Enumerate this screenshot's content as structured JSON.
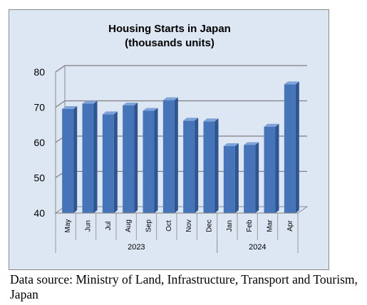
{
  "chart_data": {
    "type": "bar",
    "title": "Housing Starts in Japan",
    "subtitle": "(thousands units)",
    "categories": [
      "May",
      "Jun",
      "Jul",
      "Aug",
      "Sep",
      "Oct",
      "Nov",
      "Dec",
      "Jan",
      "Feb",
      "Mar",
      "Apr"
    ],
    "year_groups": [
      {
        "label": "2023",
        "count": 8
      },
      {
        "label": "2024",
        "count": 4
      }
    ],
    "values": [
      69.5,
      71.0,
      68.0,
      70.5,
      69.0,
      72.0,
      66.2,
      66.0,
      59.0,
      59.3,
      64.5,
      76.5
    ],
    "ylim": [
      40,
      80
    ],
    "yticks": [
      "40",
      "50",
      "60",
      "70",
      "80"
    ],
    "grid": true,
    "bar_color": "#4674b8",
    "background_color": "#dde7f3"
  },
  "caption": "Data source: Ministry of Land, Infrastructure, Transport and Tourism, Japan"
}
